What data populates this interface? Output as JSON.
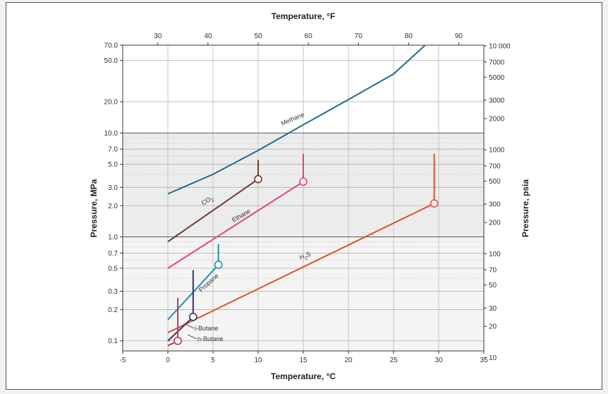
{
  "chart_data": {
    "type": "line",
    "title": "",
    "xlabel": "Temperature, °C",
    "x2label": "Temperature, °F",
    "ylabel": "Pressure, MPa",
    "y2label": "Pressure, psia",
    "xlim": [
      -5,
      35
    ],
    "ylim": [
      0.08,
      70
    ],
    "y_scale": "log",
    "grid": true,
    "x_ticks": [
      "-5",
      "0",
      "5",
      "10",
      "15",
      "20",
      "25",
      "30",
      "35"
    ],
    "x2_ticks": [
      "30",
      "40",
      "50",
      "60",
      "70",
      "80",
      "90"
    ],
    "y_ticks": [
      "0.1",
      "0.2",
      "0.3",
      "0.5",
      "0.7",
      "1.0",
      "2.0",
      "3.0",
      "5.0",
      "7.0",
      "10.0",
      "20.0",
      "50.0",
      "70.0"
    ],
    "y2_ticks": [
      "10",
      "20",
      "30",
      "50",
      "70",
      "100",
      "200",
      "300",
      "500",
      "700",
      "1000",
      "2000",
      "3000",
      "5000",
      "7000",
      "10 000"
    ],
    "series": [
      {
        "name": "Methane",
        "color": "#1f6d86",
        "x": [
          0,
          5,
          10,
          15,
          20,
          25,
          28.5
        ],
        "y": [
          2.6,
          4.0,
          6.8,
          12.0,
          21.0,
          37.0,
          70.0
        ]
      },
      {
        "name": "CO2",
        "color": "#6e3b2a",
        "x": [
          0,
          10
        ],
        "y": [
          0.9,
          3.6
        ],
        "critical": {
          "x": 10,
          "y": 3.6
        },
        "vertical_to": 5.5
      },
      {
        "name": "Ethane",
        "color": "#e8407e",
        "x": [
          0,
          15
        ],
        "y": [
          0.5,
          3.4
        ],
        "critical": {
          "x": 15,
          "y": 3.4
        },
        "vertical_to": 6.3
      },
      {
        "name": "Propane",
        "color": "#1a93a6",
        "x": [
          0,
          5.6
        ],
        "y": [
          0.16,
          0.54
        ],
        "critical": {
          "x": 5.6,
          "y": 0.54
        },
        "vertical_to": 0.85
      },
      {
        "name": "H2S",
        "color": "#e0502a",
        "x": [
          0,
          29.5
        ],
        "y": [
          0.12,
          2.1
        ],
        "critical": {
          "x": 29.5,
          "y": 2.1
        },
        "vertical_to": 6.3
      },
      {
        "name": "i-Butane",
        "color": "#3a2f6b",
        "x": [
          0,
          2.8
        ],
        "y": [
          0.1,
          0.17
        ],
        "critical": {
          "x": 2.8,
          "y": 0.17
        },
        "vertical_to": 0.48
      },
      {
        "name": "n-Butane",
        "color": "#c23360",
        "x": [
          0,
          1.1
        ],
        "y": [
          0.09,
          0.1
        ],
        "critical": {
          "x": 1.1,
          "y": 0.1
        },
        "vertical_to": 0.26
      }
    ],
    "labels": {
      "methane": "Methane",
      "co2": "CO",
      "co2_sub": "2",
      "ethane": "Ethane",
      "propane": "Propane",
      "h2s": "H",
      "h2s_sub": "2",
      "h2s_tail": "S",
      "ibutane": "i-Butane",
      "nbutane": "n-Butane"
    }
  }
}
